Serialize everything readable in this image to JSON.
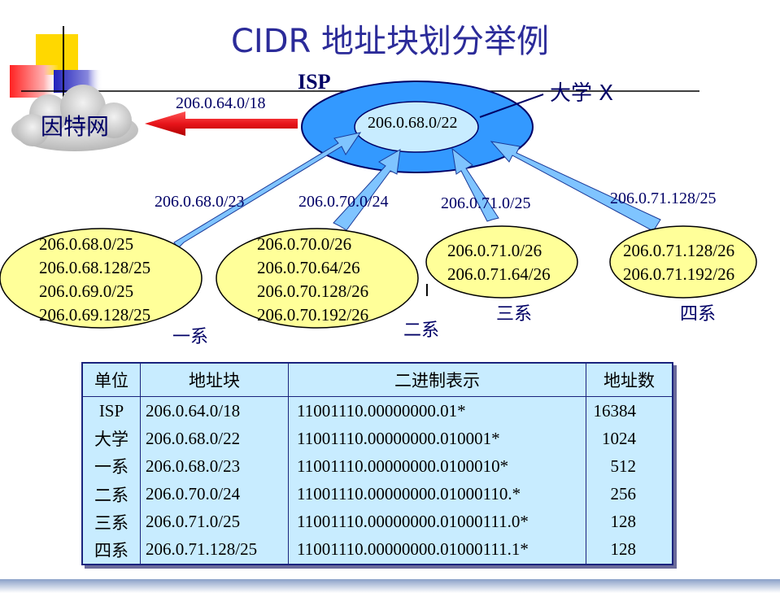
{
  "title": "CIDR 地址块划分举例",
  "internet_cloud": "因特网",
  "isp_label": "ISP",
  "isp_route": "206.0.64.0/18",
  "university_label": "大学 X",
  "university_block": "206.0.68.0/22",
  "branch_routes": [
    "206.0.68.0/23",
    "206.0.70.0/24",
    "206.0.71.0/25",
    "206.0.71.128/25"
  ],
  "departments": [
    {
      "name": "一系",
      "blocks": [
        "206.0.68.0/25",
        "206.0.68.128/25",
        "206.0.69.0/25",
        "206.0.69.128/25"
      ]
    },
    {
      "name": "二系",
      "blocks": [
        "206.0.70.0/26",
        "206.0.70.64/26",
        "206.0.70.128/26",
        "206.0.70.192/26"
      ]
    },
    {
      "name": "三系",
      "blocks": [
        "206.0.71.0/26",
        "206.0.71.64/26"
      ]
    },
    {
      "name": "四系",
      "blocks": [
        "206.0.71.128/26",
        "206.0.71.192/26"
      ]
    }
  ],
  "table": {
    "headers": [
      "单位",
      "地址块",
      "二进制表示",
      "地址数"
    ],
    "rows": [
      [
        "ISP",
        "206.0.64.0/18",
        "11001110.00000000.01*",
        "16384"
      ],
      [
        "大学",
        "206.0.68.0/22",
        "11001110.00000000.010001*",
        "1024"
      ],
      [
        "一系",
        "206.0.68.0/23",
        "11001110.00000000.0100010*",
        "512"
      ],
      [
        "二系",
        "206.0.70.0/24",
        "11001110.00000000.01000110.*",
        "256"
      ],
      [
        "三系",
        "206.0.71.0/25",
        "11001110.00000000.01000111.0*",
        "128"
      ],
      [
        "四系",
        "206.0.71.128/25",
        "11001110.00000000.01000111.1*",
        "128"
      ]
    ]
  },
  "colors": {
    "title": "#2b2b99",
    "isp_ring": "#3399ff",
    "inner_ellipse": "#c8ecff",
    "dept_fill": "#ffff99",
    "red_arrow": "#e8151b",
    "table_bg": "#c8ecff"
  }
}
